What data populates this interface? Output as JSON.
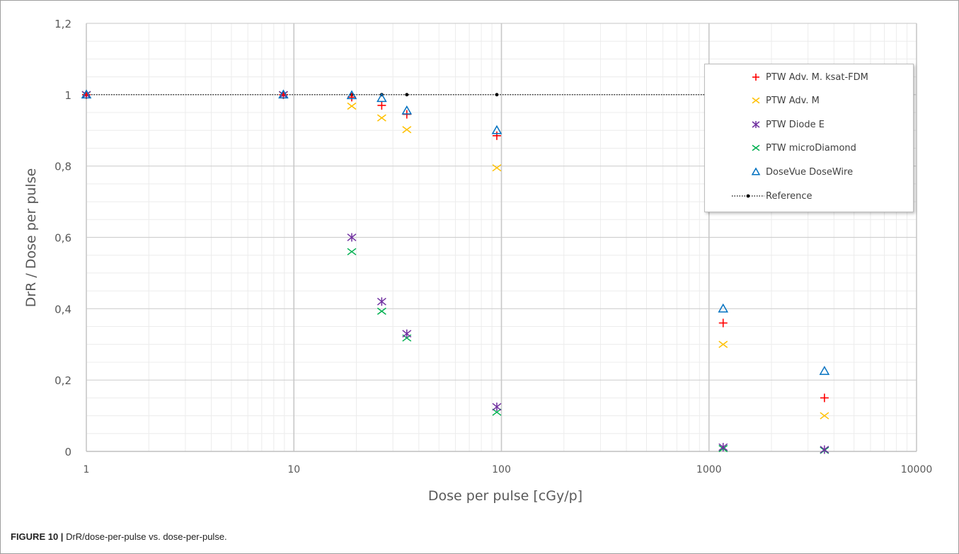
{
  "caption": {
    "label": "FIGURE 10 |",
    "text": "DrR/dose-per-pulse vs. dose-per-pulse."
  },
  "chart_data": {
    "type": "scatter",
    "xscale": "log",
    "xlim": [
      1,
      10000
    ],
    "ylim": [
      0,
      1.2
    ],
    "xlabel": "Dose per pulse [cGy/p]",
    "ylabel": "DrR / Dose per pulse",
    "x_ticks": [
      "1",
      "10",
      "100",
      "1000",
      "10000"
    ],
    "y_ticks": [
      "0",
      "0,2",
      "0,4",
      "0,6",
      "0,8",
      "1",
      "1,2"
    ],
    "grid": true,
    "legend_position": "top-right",
    "series": [
      {
        "name": "PTW Adv. M. ksat-FDM",
        "marker": "plus",
        "color": "#ff0000",
        "points": [
          [
            1,
            1.0
          ],
          [
            8.9,
            1.0
          ],
          [
            19,
            0.993
          ],
          [
            26.5,
            0.97
          ],
          [
            35,
            0.945
          ],
          [
            95,
            0.885
          ],
          [
            1170,
            0.36
          ],
          [
            3600,
            0.15
          ]
        ]
      },
      {
        "name": "PTW Adv. M",
        "marker": "x",
        "color": "#ffc000",
        "points": [
          [
            1,
            1.0
          ],
          [
            8.9,
            1.0
          ],
          [
            19,
            0.968
          ],
          [
            26.5,
            0.935
          ],
          [
            35,
            0.902
          ],
          [
            95,
            0.795
          ],
          [
            1170,
            0.3
          ],
          [
            3600,
            0.1
          ]
        ]
      },
      {
        "name": "PTW Diode E",
        "marker": "star",
        "color": "#7030a0",
        "points": [
          [
            1,
            1.0
          ],
          [
            8.9,
            1.0
          ],
          [
            19,
            0.6
          ],
          [
            26.5,
            0.42
          ],
          [
            35,
            0.33
          ],
          [
            95,
            0.125
          ],
          [
            1170,
            0.012
          ],
          [
            3600,
            0.005
          ]
        ]
      },
      {
        "name": "PTW microDiamond",
        "marker": "x",
        "color": "#00b050",
        "points": [
          [
            1,
            1.0
          ],
          [
            8.9,
            1.0
          ],
          [
            19,
            0.56
          ],
          [
            26.5,
            0.393
          ],
          [
            35,
            0.318
          ],
          [
            95,
            0.11
          ],
          [
            1170,
            0.008
          ],
          [
            3600,
            0.003
          ]
        ]
      },
      {
        "name": "DoseVue DoseWire",
        "marker": "triangle",
        "color": "#0070c0",
        "points": [
          [
            1,
            1.0
          ],
          [
            8.9,
            1.0
          ],
          [
            19,
            0.998
          ],
          [
            26.5,
            0.99
          ],
          [
            35,
            0.955
          ],
          [
            95,
            0.9
          ],
          [
            1170,
            0.4
          ],
          [
            3600,
            0.225
          ]
        ]
      },
      {
        "name": "Reference",
        "marker": "dot-line",
        "color": "#000000",
        "points": [
          [
            1,
            1.0
          ],
          [
            8.9,
            1.0
          ],
          [
            19,
            1.0
          ],
          [
            26.5,
            1.0
          ],
          [
            35,
            1.0
          ],
          [
            95,
            1.0
          ],
          [
            1170,
            1.0
          ],
          [
            3600,
            1.0
          ]
        ]
      }
    ]
  }
}
